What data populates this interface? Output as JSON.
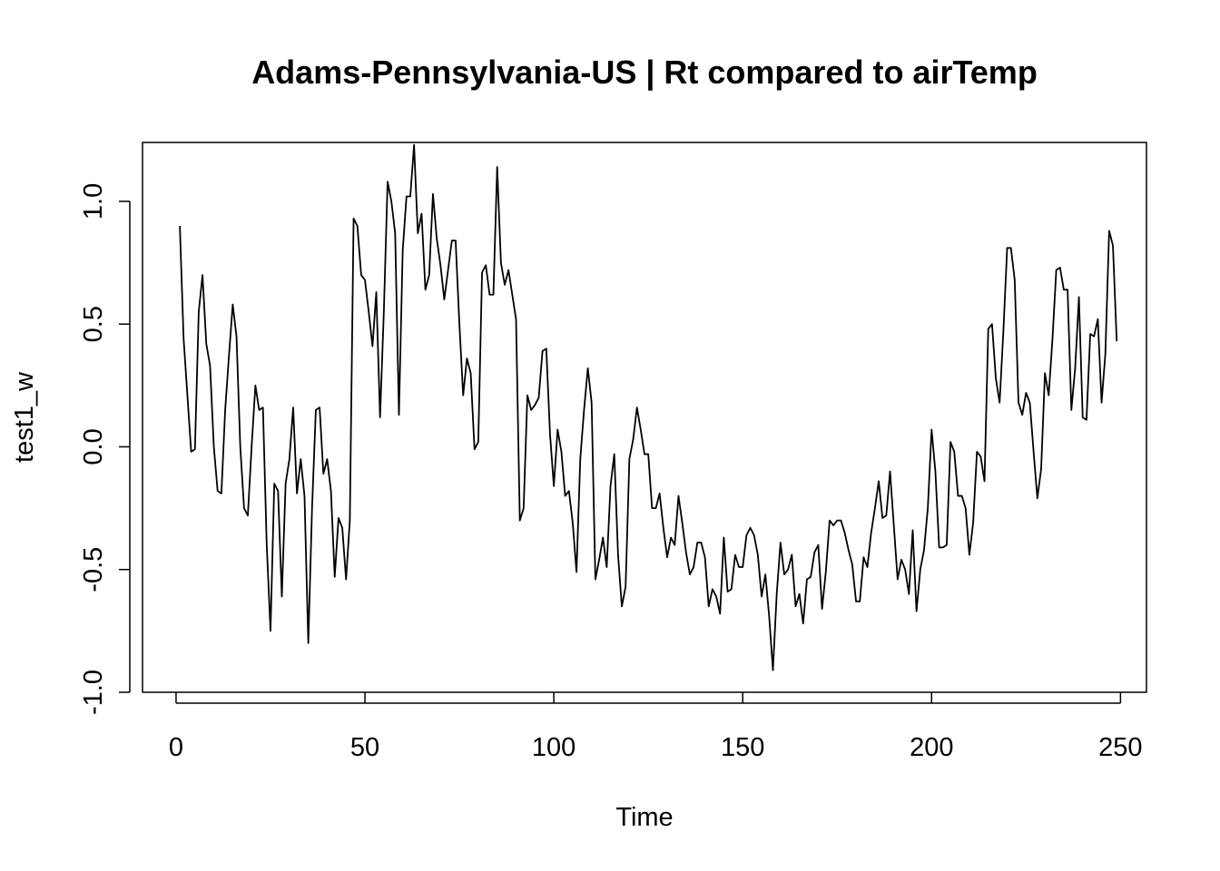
{
  "chart_data": {
    "type": "line",
    "title": "Adams-Pennsylvania-US | Rt compared to airTemp",
    "xlabel": "Time",
    "ylabel": "test1_w",
    "xlim": [
      -8.88,
      256.88
    ],
    "ylim": [
      -1.0,
      1.24
    ],
    "x_ticks": [
      0,
      50,
      100,
      150,
      200,
      250
    ],
    "y_ticks": [
      -1.0,
      -0.5,
      0.0,
      0.5,
      1.0
    ],
    "x_tick_labels": [
      "0",
      "50",
      "100",
      "150",
      "200",
      "250"
    ],
    "y_tick_labels": [
      "-1.0",
      "-0.5",
      "0.0",
      "0.5",
      "1.0"
    ],
    "grid": false,
    "series": [
      {
        "x_start": 1,
        "color": "#000000",
        "values": [
          0.9,
          0.44,
          0.21,
          -0.02,
          -0.01,
          0.55,
          0.7,
          0.42,
          0.33,
          -0.0,
          -0.18,
          -0.19,
          0.15,
          0.37,
          0.58,
          0.45,
          0.0,
          -0.25,
          -0.28,
          0.0,
          0.25,
          0.15,
          0.16,
          -0.4,
          -0.75,
          -0.15,
          -0.18,
          -0.61,
          -0.15,
          -0.05,
          0.16,
          -0.19,
          -0.05,
          -0.2,
          -0.8,
          -0.25,
          0.15,
          0.16,
          -0.11,
          -0.05,
          -0.18,
          -0.53,
          -0.29,
          -0.33,
          -0.54,
          -0.3,
          0.93,
          0.9,
          0.7,
          0.68,
          0.55,
          0.41,
          0.63,
          0.12,
          0.55,
          1.08,
          1.0,
          0.87,
          0.13,
          0.8,
          1.02,
          1.02,
          1.23,
          0.87,
          0.95,
          0.64,
          0.7,
          1.03,
          0.85,
          0.74,
          0.6,
          0.72,
          0.84,
          0.84,
          0.5,
          0.21,
          0.36,
          0.3,
          -0.01,
          0.02,
          0.71,
          0.74,
          0.62,
          0.62,
          1.14,
          0.75,
          0.66,
          0.72,
          0.62,
          0.52,
          -0.3,
          -0.25,
          0.21,
          0.15,
          0.17,
          0.2,
          0.39,
          0.4,
          0.05,
          -0.16,
          0.07,
          -0.02,
          -0.2,
          -0.18,
          -0.31,
          -0.51,
          -0.05,
          0.15,
          0.32,
          0.18,
          -0.54,
          -0.46,
          -0.37,
          -0.49,
          -0.16,
          -0.03,
          -0.44,
          -0.65,
          -0.57,
          -0.05,
          0.03,
          0.16,
          0.07,
          -0.03,
          -0.03,
          -0.25,
          -0.25,
          -0.19,
          -0.33,
          -0.45,
          -0.37,
          -0.4,
          -0.2,
          -0.31,
          -0.43,
          -0.52,
          -0.49,
          -0.39,
          -0.39,
          -0.45,
          -0.65,
          -0.58,
          -0.61,
          -0.68,
          -0.37,
          -0.59,
          -0.58,
          -0.44,
          -0.49,
          -0.49,
          -0.36,
          -0.33,
          -0.36,
          -0.44,
          -0.61,
          -0.52,
          -0.69,
          -0.91,
          -0.6,
          -0.39,
          -0.52,
          -0.5,
          -0.44,
          -0.65,
          -0.6,
          -0.72,
          -0.54,
          -0.53,
          -0.43,
          -0.4,
          -0.66,
          -0.51,
          -0.3,
          -0.32,
          -0.3,
          -0.3,
          -0.35,
          -0.42,
          -0.48,
          -0.63,
          -0.63,
          -0.45,
          -0.49,
          -0.35,
          -0.25,
          -0.14,
          -0.29,
          -0.28,
          -0.1,
          -0.32,
          -0.54,
          -0.46,
          -0.5,
          -0.6,
          -0.34,
          -0.67,
          -0.5,
          -0.42,
          -0.25,
          0.07,
          -0.1,
          -0.41,
          -0.41,
          -0.4,
          0.02,
          -0.02,
          -0.2,
          -0.2,
          -0.25,
          -0.44,
          -0.31,
          -0.02,
          -0.04,
          -0.14,
          0.48,
          0.5,
          0.28,
          0.18,
          0.47,
          0.81,
          0.81,
          0.68,
          0.18,
          0.13,
          0.22,
          0.18,
          -0.02,
          -0.21,
          -0.09,
          0.3,
          0.21,
          0.44,
          0.72,
          0.73,
          0.64,
          0.64,
          0.15,
          0.32,
          0.61,
          0.12,
          0.11,
          0.46,
          0.45,
          0.52,
          0.18,
          0.38,
          0.88,
          0.82,
          0.43
        ]
      }
    ]
  }
}
